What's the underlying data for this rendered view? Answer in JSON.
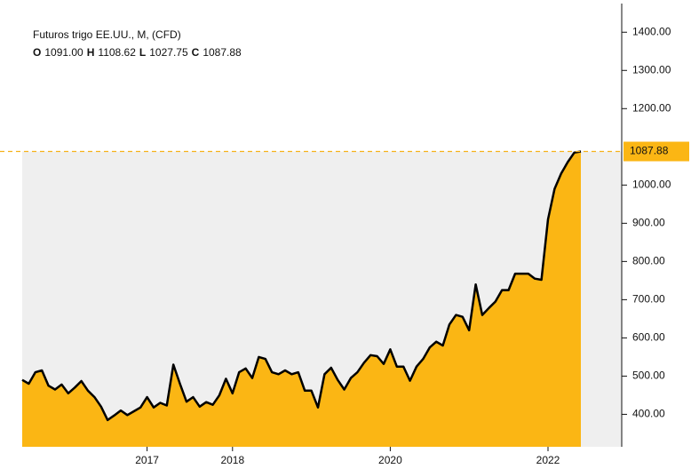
{
  "chart_data": {
    "type": "area",
    "title": "Futuros trigo EE.UU., M, (CFD)",
    "ohlc": [
      {
        "key": "O",
        "value": "1091.00"
      },
      {
        "key": "H",
        "value": "1108.62"
      },
      {
        "key": "L",
        "value": "1027.75"
      },
      {
        "key": "C",
        "value": "1087.88"
      }
    ],
    "categories": [
      null,
      null,
      null,
      null,
      null,
      null,
      null,
      null,
      null,
      null,
      null,
      null,
      null,
      null,
      null,
      null,
      null,
      null,
      null,
      "2017",
      null,
      null,
      null,
      null,
      null,
      null,
      null,
      null,
      null,
      null,
      null,
      null,
      "2018",
      null,
      null,
      null,
      null,
      null,
      null,
      null,
      null,
      null,
      null,
      null,
      null,
      null,
      null,
      null,
      null,
      null,
      null,
      null,
      null,
      null,
      null,
      null,
      "2020",
      null,
      null,
      null,
      null,
      null,
      null,
      null,
      null,
      null,
      null,
      null,
      null,
      null,
      null,
      null,
      null,
      null,
      null,
      null,
      null,
      null,
      null,
      null,
      "2022",
      null,
      null,
      null,
      null,
      null
    ],
    "values": [
      490,
      480,
      510,
      515,
      475,
      465,
      478,
      455,
      470,
      487,
      462,
      445,
      420,
      385,
      397,
      410,
      398,
      408,
      418,
      445,
      418,
      430,
      423,
      530,
      480,
      433,
      445,
      420,
      432,
      425,
      450,
      493,
      455,
      510,
      520,
      495,
      550,
      545,
      510,
      505,
      515,
      505,
      510,
      462,
      462,
      418,
      505,
      522,
      490,
      465,
      495,
      510,
      535,
      555,
      552,
      532,
      570,
      525,
      525,
      488,
      525,
      545,
      575,
      590,
      580,
      635,
      660,
      655,
      620,
      740,
      660,
      678,
      695,
      725,
      725,
      768,
      768,
      768,
      755,
      752,
      910,
      990,
      1030,
      1060,
      1085,
      1087.88
    ],
    "color": "#fbb614",
    "ylim": [
      315,
      1475
    ],
    "yticks": [
      {
        "value": 400,
        "label": "400.00"
      },
      {
        "value": 500,
        "label": "500.00"
      },
      {
        "value": 600,
        "label": "600.00"
      },
      {
        "value": 700,
        "label": "700.00"
      },
      {
        "value": 800,
        "label": "800.00"
      },
      {
        "value": 900,
        "label": "900.00"
      },
      {
        "value": 1000,
        "label": "1000.00"
      },
      {
        "value": 1200,
        "label": "1200.00"
      },
      {
        "value": 1300,
        "label": "1300.00"
      },
      {
        "value": 1400,
        "label": "1400.00"
      }
    ]
  }
}
